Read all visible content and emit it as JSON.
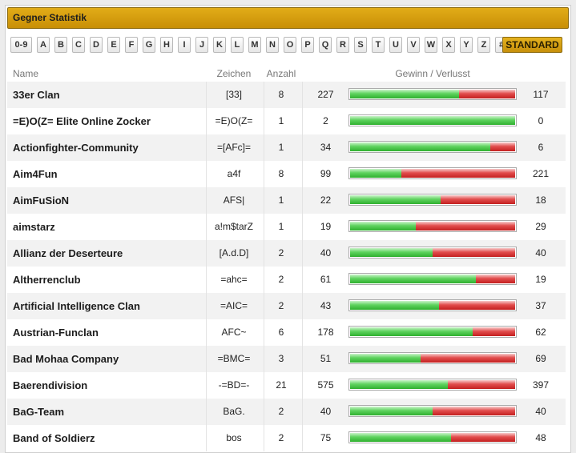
{
  "panel": {
    "title": "Gegner Statistik"
  },
  "letters": [
    "0-9",
    "A",
    "B",
    "C",
    "D",
    "E",
    "F",
    "G",
    "H",
    "I",
    "J",
    "K",
    "L",
    "M",
    "N",
    "O",
    "P",
    "Q",
    "R",
    "S",
    "T",
    "U",
    "V",
    "W",
    "X",
    "Y",
    "Z",
    "#"
  ],
  "standard_label": "STANDARD",
  "columns": {
    "name": "Name",
    "symbol": "Zeichen",
    "count": "Anzahl",
    "winloss": "Gewinn / Verlusst"
  },
  "rows": [
    {
      "name": "33er Clan",
      "symbol": "[33]",
      "count": "8",
      "wins": "227",
      "losses": "117"
    },
    {
      "name": "=E)O(Z= Elite Online Zocker",
      "symbol": "=E)O(Z=",
      "count": "1",
      "wins": "2",
      "losses": "0"
    },
    {
      "name": "Actionfighter-Community",
      "symbol": "=[AFc]=",
      "count": "1",
      "wins": "34",
      "losses": "6"
    },
    {
      "name": "Aim4Fun",
      "symbol": "a4f",
      "count": "8",
      "wins": "99",
      "losses": "221"
    },
    {
      "name": "AimFuSioN",
      "symbol": "AFS|",
      "count": "1",
      "wins": "22",
      "losses": "18"
    },
    {
      "name": "aimstarz",
      "symbol": "a!m$tarZ",
      "count": "1",
      "wins": "19",
      "losses": "29"
    },
    {
      "name": "Allianz der Deserteure",
      "symbol": "[A.d.D]",
      "count": "2",
      "wins": "40",
      "losses": "40"
    },
    {
      "name": "Altherrenclub",
      "symbol": "=ahc=",
      "count": "2",
      "wins": "61",
      "losses": "19"
    },
    {
      "name": "Artificial Intelligence Clan",
      "symbol": "=AIC=",
      "count": "2",
      "wins": "43",
      "losses": "37"
    },
    {
      "name": "Austrian-Funclan",
      "symbol": "AFC~",
      "count": "6",
      "wins": "178",
      "losses": "62"
    },
    {
      "name": "Bad Mohaa Company",
      "symbol": "=BMC=",
      "count": "3",
      "wins": "51",
      "losses": "69"
    },
    {
      "name": "Baerendivision",
      "symbol": "-=BD=-",
      "count": "21",
      "wins": "575",
      "losses": "397"
    },
    {
      "name": "BaG-Team",
      "symbol": "BaG.",
      "count": "2",
      "wins": "40",
      "losses": "40"
    },
    {
      "name": "Band of Soldierz",
      "symbol": "bos",
      "count": "2",
      "wins": "75",
      "losses": "48"
    }
  ],
  "colors": {
    "title_bar": "#d49d0e",
    "win": "#3cbc3c",
    "loss": "#d63232"
  }
}
